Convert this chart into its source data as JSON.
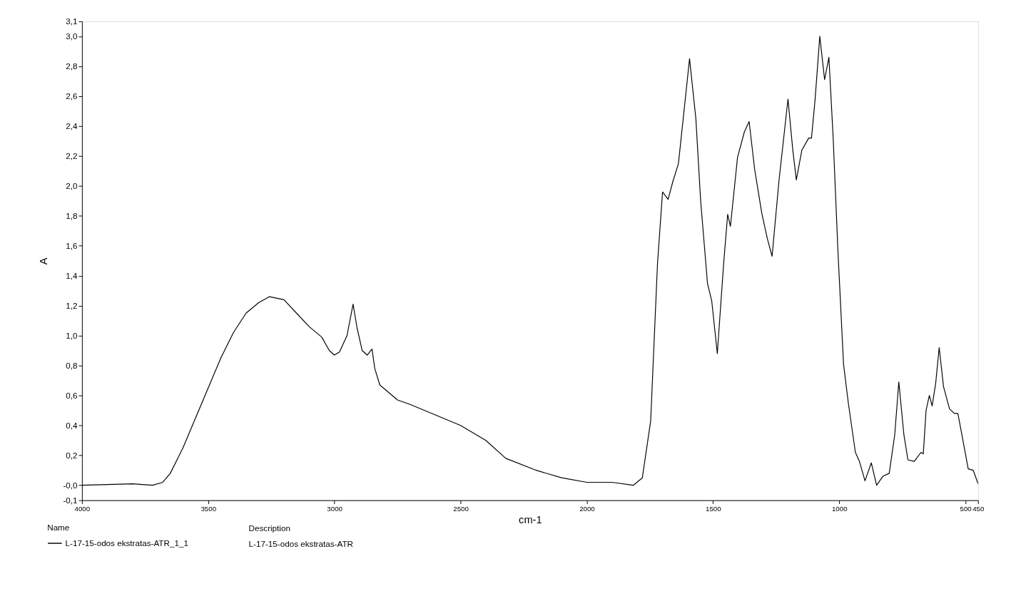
{
  "chart_data": {
    "type": "line",
    "xlabel": "cm-1",
    "ylabel": "A",
    "legend_title": "Name",
    "xlim": [
      4000,
      450
    ],
    "ylim": [
      -0.1,
      3.1
    ],
    "xticks": [
      4000,
      3500,
      3000,
      2500,
      2000,
      1500,
      1000,
      500,
      450
    ],
    "yticks": [
      {
        "value": -0.1,
        "label": "-0,1"
      },
      {
        "value": 0,
        "label": "-0,0"
      },
      {
        "value": 0.2,
        "label": "0,2"
      },
      {
        "value": 0.4,
        "label": "0,4"
      },
      {
        "value": 0.6,
        "label": "0,6"
      },
      {
        "value": 0.8,
        "label": "0,8"
      },
      {
        "value": 1.0,
        "label": "1,0"
      },
      {
        "value": 1.2,
        "label": "1,2"
      },
      {
        "value": 1.4,
        "label": "1,4"
      },
      {
        "value": 1.6,
        "label": "1,6"
      },
      {
        "value": 1.8,
        "label": "1,8"
      },
      {
        "value": 2.0,
        "label": "2,0"
      },
      {
        "value": 2.2,
        "label": "2,2"
      },
      {
        "value": 2.4,
        "label": "2,4"
      },
      {
        "value": 2.6,
        "label": "2,6"
      },
      {
        "value": 2.8,
        "label": "2,8"
      },
      {
        "value": 3.0,
        "label": "3,0"
      },
      {
        "value": 3.1,
        "label": "3,1"
      }
    ],
    "grid": false,
    "legend": "bottom",
    "line_style": "solid",
    "annotations": [
      "Description",
      "L-17-15-odos ekstratas-ATR"
    ],
    "series": [
      {
        "name": "L-17-15-odos ekstratas-ATR_1_1",
        "color": "#000000",
        "x": [
          4000,
          3800,
          3720,
          3680,
          3650,
          3600,
          3550,
          3500,
          3450,
          3400,
          3350,
          3300,
          3258,
          3200,
          3150,
          3100,
          3050,
          3020,
          3000,
          2980,
          2950,
          2926,
          2910,
          2890,
          2870,
          2851,
          2840,
          2820,
          2750,
          2700,
          2600,
          2500,
          2400,
          2321,
          2200,
          2100,
          2000,
          1900,
          1816,
          1780,
          1747,
          1720,
          1700,
          1678,
          1659,
          1637,
          1593,
          1568,
          1549,
          1522,
          1505,
          1483,
          1458,
          1442,
          1431,
          1403,
          1376,
          1357,
          1335,
          1307,
          1285,
          1266,
          1239,
          1203,
          1184,
          1170,
          1148,
          1121,
          1110,
          1096,
          1077,
          1058,
          1041,
          1024,
          1005,
          983,
          964,
          936,
          920,
          898,
          873,
          852,
          827,
          802,
          780,
          764,
          744,
          728,
          703,
          676,
          667,
          656,
          643,
          632,
          618,
          604,
          587,
          563,
          544,
          530,
          510,
          489,
          469,
          450
        ],
        "values": [
          0.0,
          0.01,
          0.0,
          0.02,
          0.08,
          0.25,
          0.45,
          0.65,
          0.85,
          1.02,
          1.15,
          1.22,
          1.26,
          1.24,
          1.15,
          1.06,
          0.99,
          0.9,
          0.87,
          0.89,
          1.0,
          1.21,
          1.05,
          0.9,
          0.87,
          0.91,
          0.78,
          0.67,
          0.57,
          0.54,
          0.47,
          0.4,
          0.3,
          0.18,
          0.1,
          0.05,
          0.02,
          0.02,
          0.0,
          0.05,
          0.43,
          1.48,
          1.96,
          1.91,
          2.03,
          2.15,
          2.85,
          2.45,
          1.9,
          1.35,
          1.23,
          0.88,
          1.48,
          1.81,
          1.73,
          2.19,
          2.36,
          2.43,
          2.11,
          1.82,
          1.65,
          1.53,
          2.03,
          2.58,
          2.24,
          2.04,
          2.24,
          2.32,
          2.32,
          2.57,
          3.0,
          2.71,
          2.86,
          2.32,
          1.56,
          0.81,
          0.55,
          0.22,
          0.16,
          0.03,
          0.15,
          0.0,
          0.06,
          0.08,
          0.34,
          0.69,
          0.34,
          0.17,
          0.16,
          0.22,
          0.21,
          0.5,
          0.6,
          0.53,
          0.68,
          0.92,
          0.66,
          0.51,
          0.48,
          0.48,
          0.3,
          0.11,
          0.1,
          0.01
        ]
      }
    ]
  }
}
